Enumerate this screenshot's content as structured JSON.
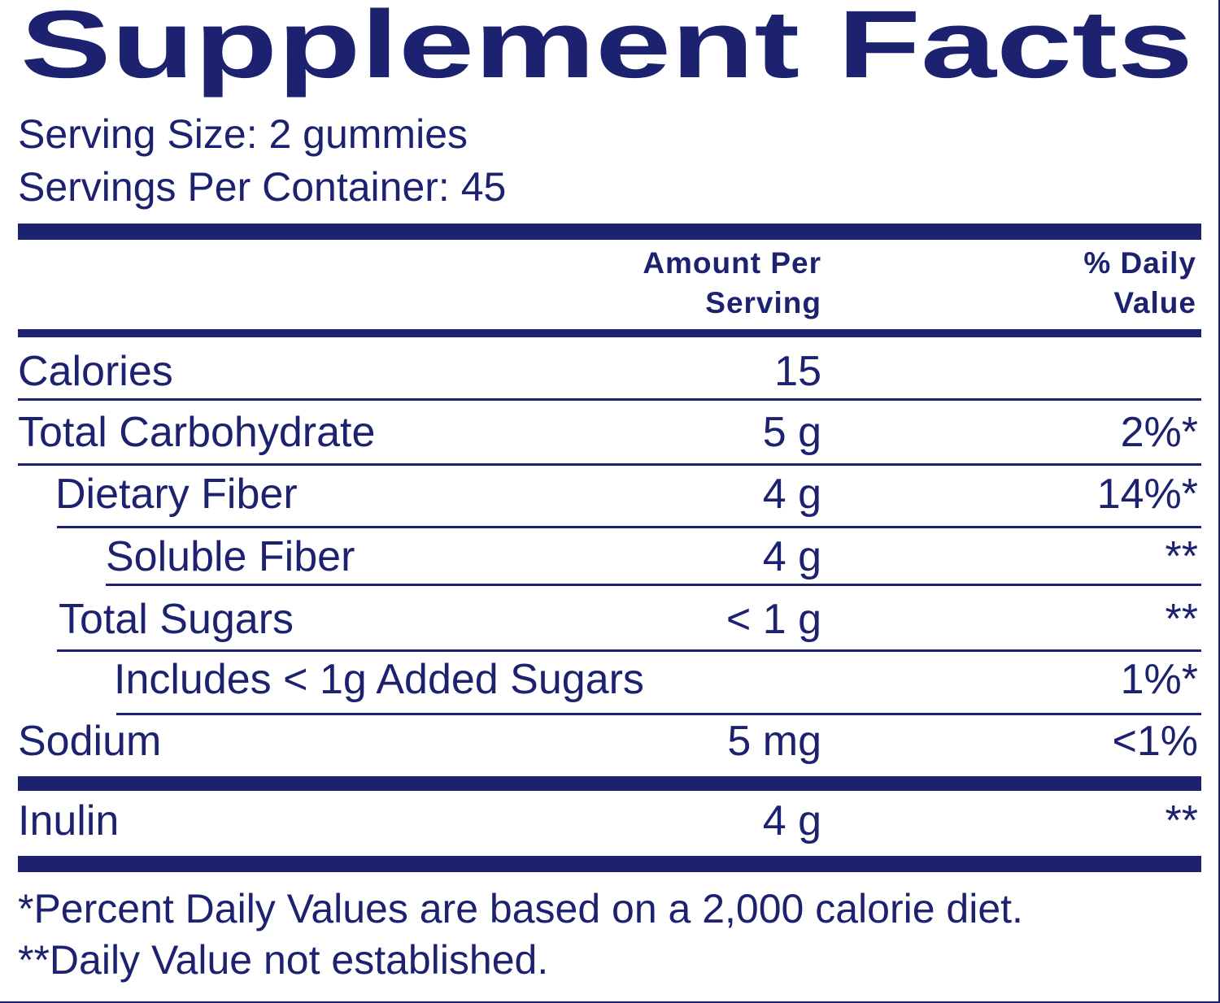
{
  "title": "Supplement Facts",
  "serving_size": "Serving Size:  2 gummies",
  "servings_per_container": "Servings Per Container: 45",
  "table": {
    "header": {
      "amount": "Amount Per Serving",
      "daily_value": "% Daily Value"
    },
    "rows": [
      {
        "name": "Calories",
        "amount": "15"
      },
      {
        "name": "Total Carbohydrate",
        "amount": "5 g",
        "daily_value": "2%*"
      },
      {
        "name": "Dietary Fiber",
        "amount": "4 g",
        "daily_value": "14%*"
      },
      {
        "name": "Soluble Fiber",
        "amount": "4 g",
        "daily_value": "**"
      },
      {
        "name": "Total Sugars",
        "amount": "< 1 g",
        "daily_value": "**"
      },
      {
        "name": "Includes < 1g Added Sugars",
        "daily_value": "1%*"
      },
      {
        "name": "Sodium",
        "amount": "5 mg",
        "daily_value": "<1%"
      },
      {
        "name": "Inulin",
        "amount": "4 g",
        "daily_value": "**"
      }
    ]
  },
  "footnotes": [
    "*Percent Daily Values are based on a 2,000 calorie diet.",
    "**Daily Value not established."
  ]
}
